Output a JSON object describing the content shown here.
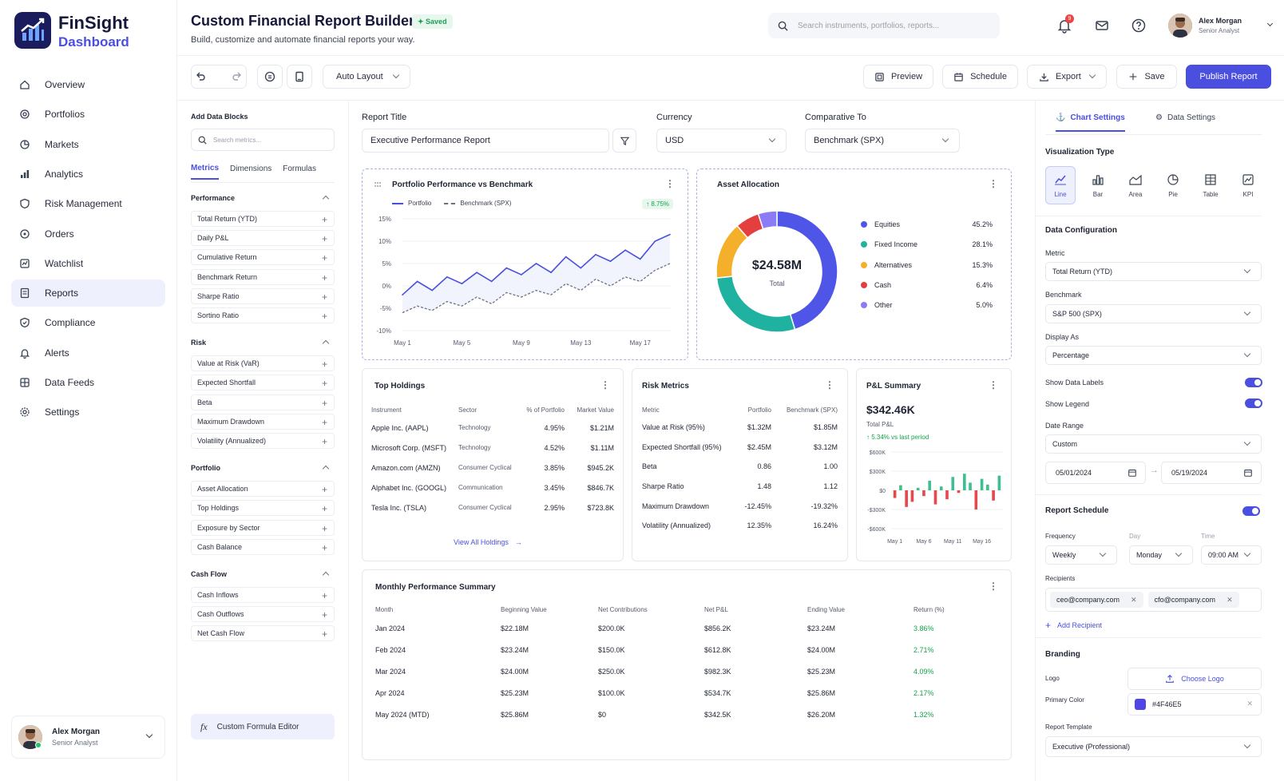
{
  "brand": {
    "name": "FinSight",
    "sub": "Dashboard"
  },
  "nav": [
    {
      "label": "Overview",
      "icon": "home-icon"
    },
    {
      "label": "Portfolios",
      "icon": "portfolio-icon"
    },
    {
      "label": "Markets",
      "icon": "markets-icon"
    },
    {
      "label": "Analytics",
      "icon": "analytics-icon"
    },
    {
      "label": "Risk Management",
      "icon": "shield-icon"
    },
    {
      "label": "Orders",
      "icon": "orders-icon"
    },
    {
      "label": "Watchlist",
      "icon": "watchlist-icon"
    },
    {
      "label": "Reports",
      "icon": "reports-icon",
      "active": true
    },
    {
      "label": "Compliance",
      "icon": "compliance-icon"
    },
    {
      "label": "Alerts",
      "icon": "bell-icon"
    },
    {
      "label": "Data Feeds",
      "icon": "data-feeds-icon"
    },
    {
      "label": "Settings",
      "icon": "gear-icon"
    }
  ],
  "user": {
    "name": "Alex Morgan",
    "role": "Senior Analyst"
  },
  "header": {
    "title": "Custom Financial Report Builder",
    "saved": "Saved",
    "subtitle": "Build, customize and automate financial reports your way.",
    "search_placeholder": "Search instruments, portfolios, reports...",
    "notif_count": "9"
  },
  "toolbar": {
    "layout": "Auto Layout",
    "preview": "Preview",
    "schedule": "Schedule",
    "export": "Export",
    "save": "Save",
    "publish": "Publish Report"
  },
  "blocks": {
    "title": "Add Data Blocks",
    "search_placeholder": "Search metrics...",
    "tabs": [
      "Metrics",
      "Dimensions",
      "Formulas"
    ],
    "sections": [
      {
        "name": "Performance",
        "items": [
          "Total Return (YTD)",
          "Daily P&L",
          "Cumulative Return",
          "Benchmark Return",
          "Sharpe Ratio",
          "Sortino Ratio"
        ]
      },
      {
        "name": "Risk",
        "items": [
          "Value at Risk (VaR)",
          "Expected Shortfall",
          "Beta",
          "Maximum Drawdown",
          "Volatility (Annualized)"
        ]
      },
      {
        "name": "Portfolio",
        "items": [
          "Asset Allocation",
          "Top Holdings",
          "Exposure by Sector",
          "Cash Balance"
        ]
      },
      {
        "name": "Cash Flow",
        "items": [
          "Cash Inflows",
          "Cash Outflows",
          "Net Cash Flow"
        ]
      }
    ],
    "formula_editor": "Custom Formula Editor"
  },
  "report": {
    "title_label": "Report Title",
    "title_value": "Executive Performance Report",
    "currency_label": "Currency",
    "currency_value": "USD",
    "compare_label": "Comparative To",
    "compare_value": "Benchmark (SPX)"
  },
  "perf": {
    "title": "Portfolio Performance vs Benchmark",
    "legend_a": "Portfolio",
    "legend_b": "Benchmark (SPX)",
    "change": "↑ 8.75%"
  },
  "allocation": {
    "title": "Asset Allocation",
    "total": "$24.58M",
    "total_label": "Total"
  },
  "holdings": {
    "title": "Top Holdings",
    "headers": [
      "Instrument",
      "Sector",
      "% of Portfolio",
      "Market Value"
    ],
    "rows": [
      [
        "Apple Inc. (AAPL)",
        "Technology",
        "4.95%",
        "$1.21M"
      ],
      [
        "Microsoft Corp. (MSFT)",
        "Technology",
        "4.52%",
        "$1.11M"
      ],
      [
        "Amazon.com (AMZN)",
        "Consumer Cyclical",
        "3.85%",
        "$945.2K"
      ],
      [
        "Alphabet Inc. (GOOGL)",
        "Communication",
        "3.45%",
        "$846.7K"
      ],
      [
        "Tesla Inc. (TSLA)",
        "Consumer Cyclical",
        "2.95%",
        "$723.8K"
      ]
    ],
    "link": "View All Holdings"
  },
  "risk": {
    "title": "Risk Metrics",
    "headers": [
      "Metric",
      "Portfolio",
      "Benchmark (SPX)"
    ],
    "rows": [
      [
        "Value at Risk (95%)",
        "$1.32M",
        "$1.85M"
      ],
      [
        "Expected Shortfall (95%)",
        "$2.45M",
        "$3.12M"
      ],
      [
        "Beta",
        "0.86",
        "1.00"
      ],
      [
        "Sharpe Ratio",
        "1.48",
        "1.12"
      ],
      [
        "Maximum Drawdown",
        "-12.45%",
        "-19.32%"
      ],
      [
        "Volatility (Annualized)",
        "12.35%",
        "16.24%"
      ]
    ]
  },
  "pnl": {
    "title": "P&L Summary",
    "value": "$342.46K",
    "label": "Total P&L",
    "change": "↑ 5.34% vs last period"
  },
  "monthly": {
    "title": "Monthly Performance Summary",
    "headers": [
      "Month",
      "Beginning Value",
      "Net Contributions",
      "Net P&L",
      "Ending Value",
      "Return (%)"
    ],
    "rows": [
      [
        "Jan 2024",
        "$22.18M",
        "$200.0K",
        "$856.2K",
        "$23.24M",
        "3.86%"
      ],
      [
        "Feb 2024",
        "$23.24M",
        "$150.0K",
        "$612.8K",
        "$24.00M",
        "2.71%"
      ],
      [
        "Mar 2024",
        "$24.00M",
        "$250.0K",
        "$982.3K",
        "$25.23M",
        "4.09%"
      ],
      [
        "Apr 2024",
        "$25.23M",
        "$100.0K",
        "$534.7K",
        "$25.86M",
        "2.17%"
      ],
      [
        "May 2024 (MTD)",
        "$25.86M",
        "$0",
        "$342.5K",
        "$26.20M",
        "1.32%"
      ]
    ]
  },
  "settings": {
    "tabs": [
      "Chart Settings",
      "Data Settings"
    ],
    "viz_label": "Visualization Type",
    "viz_types": [
      "Line",
      "Bar",
      "Area",
      "Pie",
      "Table",
      "KPI"
    ],
    "data_config": "Data Configuration",
    "metric_label": "Metric",
    "metric_value": "Total Return (YTD)",
    "benchmark_label": "Benchmark",
    "benchmark_value": "S&P 500 (SPX)",
    "display_label": "Display As",
    "display_value": "Percentage",
    "show_labels": "Show Data Labels",
    "show_legend": "Show Legend",
    "range_label": "Date Range",
    "range_value": "Custom",
    "date_from": "05/01/2024",
    "date_to": "05/19/2024",
    "schedule_title": "Report Schedule",
    "freq_label": "Frequency",
    "freq_value": "Weekly",
    "day_label": "Day",
    "day_value": "Monday",
    "time_label": "Time",
    "time_value": "09:00 AM",
    "recipients_label": "Recipients",
    "recipients": [
      "ceo@company.com",
      "cfo@company.com"
    ],
    "add_recipient": "Add Recipient",
    "branding_title": "Branding",
    "logo_label": "Logo",
    "logo_button": "Choose Logo",
    "color_label": "Primary Color",
    "color_value": "#4F46E5",
    "template_label": "Report Template",
    "template_value": "Executive (Professional)"
  },
  "chart_data": [
    {
      "type": "line",
      "title": "Portfolio Performance vs Benchmark",
      "x": [
        "May 1",
        "May 2",
        "May 3",
        "May 4",
        "May 5",
        "May 6",
        "May 7",
        "May 8",
        "May 9",
        "May 10",
        "May 11",
        "May 12",
        "May 13",
        "May 14",
        "May 15",
        "May 16",
        "May 17",
        "May 18",
        "May 19"
      ],
      "x_ticks": [
        "May 1",
        "May 5",
        "May 9",
        "May 13",
        "May 17"
      ],
      "y_ticks": [
        "15%",
        "10%",
        "5%",
        "0%",
        "-5%",
        "-10%"
      ],
      "ylim": [
        -10,
        15
      ],
      "series": [
        {
          "name": "Portfolio",
          "values": [
            -2,
            1,
            -1,
            2,
            0.5,
            3,
            1,
            4,
            2.5,
            5,
            3,
            6.5,
            4,
            7,
            5.5,
            8,
            6,
            10,
            11.5
          ]
        },
        {
          "name": "Benchmark (SPX)",
          "values": [
            -6,
            -4.5,
            -5.5,
            -3.5,
            -4.5,
            -2.5,
            -4,
            -1.5,
            -2.5,
            -1,
            -2,
            0.5,
            -1,
            1.5,
            0,
            2,
            1,
            3.5,
            5
          ]
        }
      ]
    },
    {
      "type": "pie",
      "title": "Asset Allocation",
      "categories": [
        "Equities",
        "Fixed Income",
        "Alternatives",
        "Cash",
        "Other"
      ],
      "values": [
        45.2,
        28.1,
        15.3,
        6.4,
        5.0
      ],
      "labels": [
        "45.2%",
        "28.1%",
        "15.3%",
        "6.4%",
        "5.0%"
      ],
      "colors": [
        "#4f55e6",
        "#20b2a0",
        "#f4b02a",
        "#e53e3e",
        "#8b7cf6"
      ]
    },
    {
      "type": "bar",
      "title": "P&L Summary",
      "x_ticks": [
        "May 1",
        "May 6",
        "May 11",
        "May 16"
      ],
      "y_ticks": [
        "$600K",
        "$300K",
        "$0",
        "-$300K",
        "-$600K"
      ],
      "ylim": [
        -600,
        600
      ],
      "values": [
        -120,
        80,
        -260,
        -180,
        40,
        -90,
        150,
        -220,
        60,
        -140,
        210,
        -40,
        260,
        120,
        -300,
        180,
        90,
        -160,
        230
      ]
    }
  ]
}
